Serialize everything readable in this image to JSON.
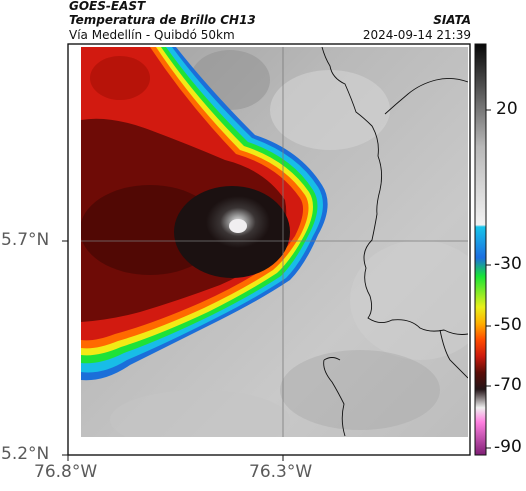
{
  "header": {
    "satellite": "GOES-EAST",
    "product": "Temperatura de Brillo CH13",
    "route": "Vía Medellín - Quibdó 50km",
    "org": "SIATA",
    "timestamp": "2024-09-14 21:39"
  },
  "axes": {
    "y_ticks": [
      "5.7°N",
      "5.2°N"
    ],
    "x_ticks": [
      "76.8°W",
      "76.3°W"
    ]
  },
  "colorbar": {
    "ticks": [
      "20",
      "-30",
      "-50",
      "-70",
      "-90"
    ],
    "stops": [
      "#c1c1c1",
      "#2a2a2a",
      "#0a0a0a",
      "#0bb7d9",
      "#17a0ff",
      "#0d7bff",
      "#16e43c",
      "#d8ee1c",
      "#ffcc00",
      "#ff5500",
      "#c1190c",
      "#5b0c08",
      "#221317",
      "#f0f0f0",
      "#ff7adb",
      "#8c1f7f"
    ]
  },
  "map": {
    "colors": {
      "cold_core": "#1b1111",
      "deep_red": "#6e0b06",
      "red": "#d21a10",
      "orange": "#ff6a00",
      "yellow": "#f2ea16",
      "green": "#1ee238",
      "cyan": "#18c5e8",
      "blue": "#1b7ae0",
      "warm_gray": "#b4b4b4"
    }
  }
}
